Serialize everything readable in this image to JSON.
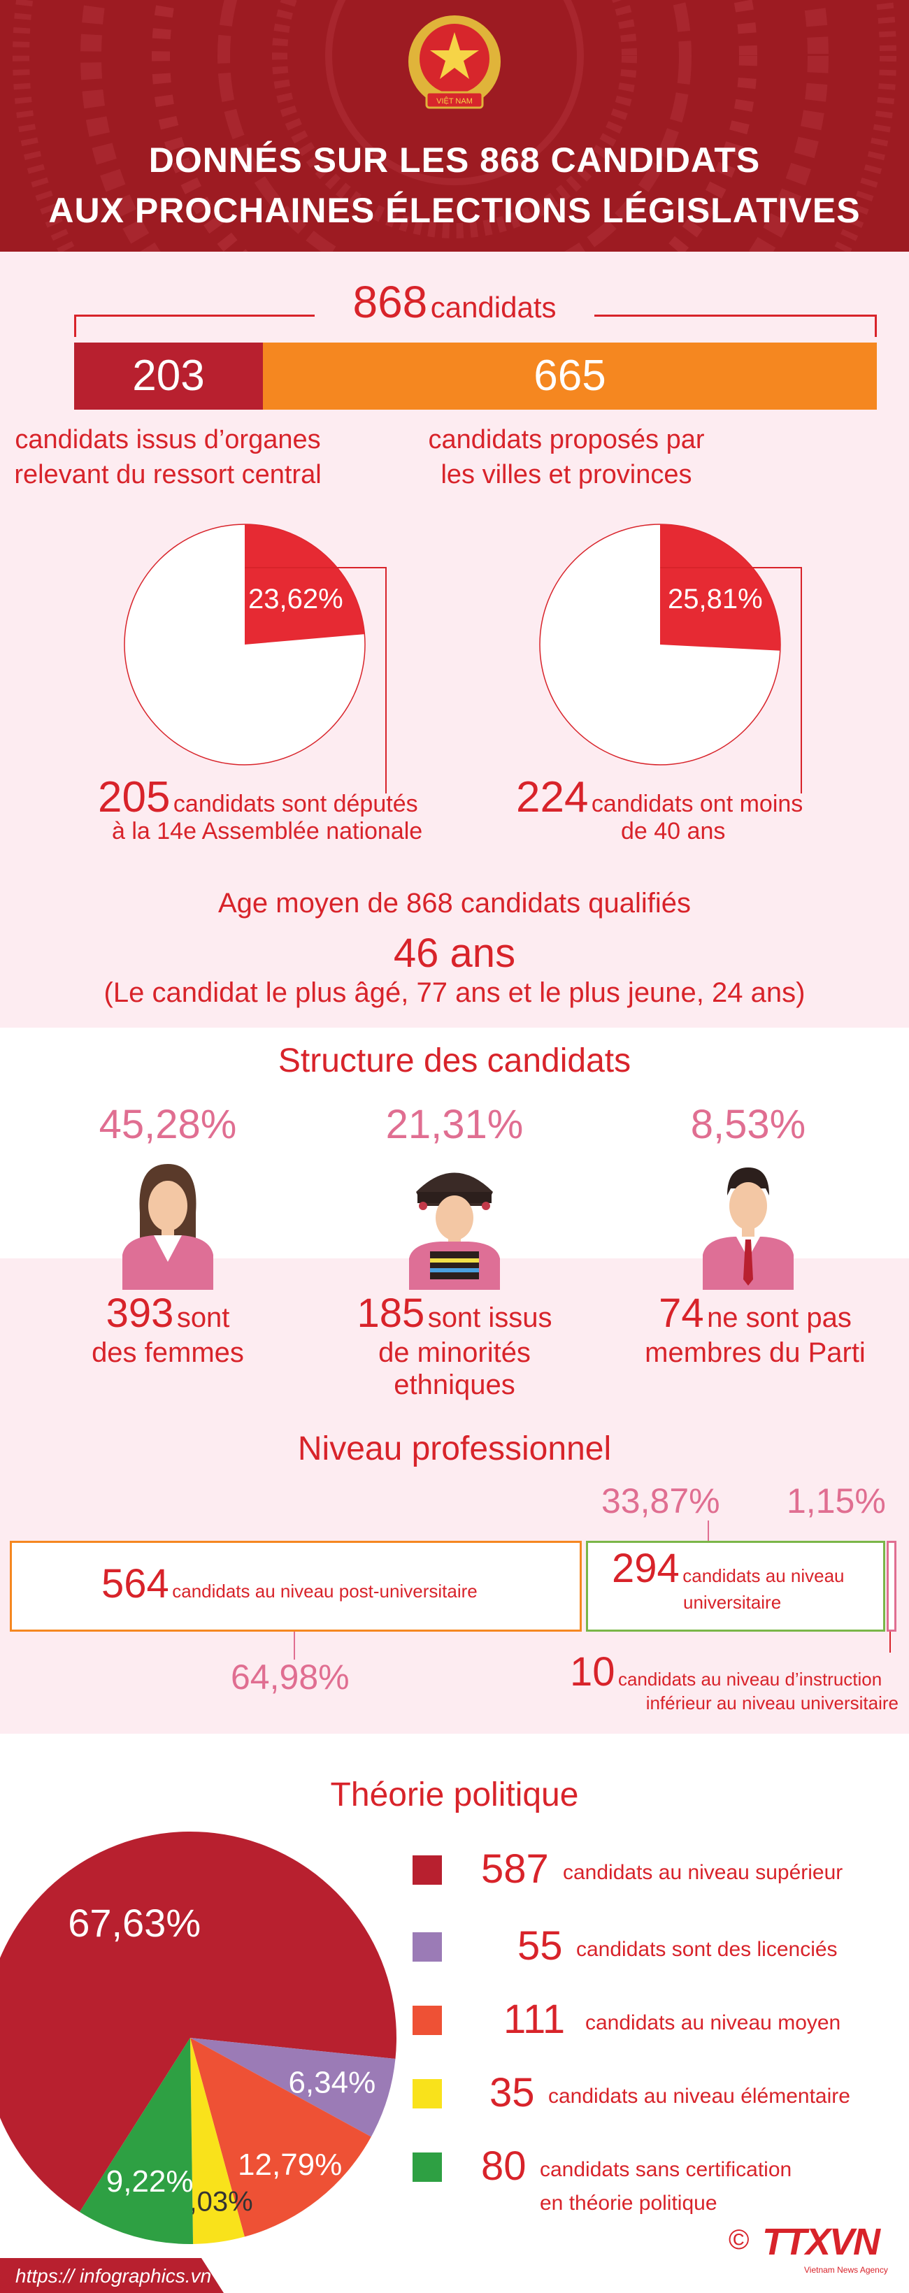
{
  "header": {
    "title_line1": "DONNÉS SUR LES 868 CANDIDATS",
    "title_line2": "AUX PROCHAINES ÉLECTIONS LÉGISLATIVES",
    "emblem_text": "VIỆT NAM"
  },
  "total": {
    "number": "868",
    "label": "candidats"
  },
  "split": {
    "central": {
      "number": "203",
      "label_line1": "candidats issus d’organes",
      "label_line2": "relevant du ressort central"
    },
    "provincial": {
      "number": "665",
      "label_line1": "candidats proposés par",
      "label_line2": "les villes et provinces"
    }
  },
  "pies": {
    "deputies": {
      "pct": 23.62,
      "label": "23,62%",
      "number": "205",
      "text1": "candidats sont députés",
      "text2": "à la 14e Assemblée nationale"
    },
    "young": {
      "pct": 25.81,
      "label": "25,81%",
      "number": "224",
      "text1": "candidats ont moins",
      "text2": "de 40 ans"
    }
  },
  "age": {
    "title": "Age moyen de 868 candidats qualifiés",
    "value": "46 ans",
    "note": "(Le candidat le plus âgé, 77 ans et le plus jeune, 24 ans)"
  },
  "structure": {
    "title": "Structure des candidats",
    "items": [
      {
        "pct": "45,28%",
        "number": "393",
        "text1": "sont",
        "text2": "des femmes",
        "text3": "",
        "icon": "woman-icon"
      },
      {
        "pct": "21,31%",
        "number": "185",
        "text1": "sont issus",
        "text2": "de minorités",
        "text3": "ethniques",
        "icon": "ethnic-minority-icon"
      },
      {
        "pct": "8,53%",
        "number": "74",
        "text1": "ne sont pas",
        "text2": "membres du Parti",
        "text3": "",
        "icon": "man-icon"
      }
    ]
  },
  "professional": {
    "title": "Niveau professionnel",
    "post_university": {
      "number": "564",
      "text": "candidats au niveau post-universitaire",
      "pct": "64,98%"
    },
    "university": {
      "number": "294",
      "text1": "candidats au niveau",
      "text2": "universitaire",
      "pct": "33,87%"
    },
    "below": {
      "number": "10",
      "text1": "candidats au niveau d’instruction",
      "text2": "inférieur au niveau universitaire",
      "pct": "1,15%"
    }
  },
  "chart_data": {
    "type": "pie",
    "title": "Théorie politique",
    "slices": [
      {
        "label": "candidats au niveau supérieur",
        "count": 587,
        "value": 67.63,
        "pct_label": "67,63%",
        "color": "#b8202f"
      },
      {
        "label": "candidats sont des licenciés",
        "count": 55,
        "value": 6.34,
        "pct_label": "6,34%",
        "color": "#9b7bb6"
      },
      {
        "label": "candidats au niveau moyen",
        "count": 111,
        "value": 12.79,
        "pct_label": "12,79%",
        "color": "#ee5135"
      },
      {
        "label": "candidats au niveau élémentaire",
        "count": 35,
        "value": 4.03,
        "pct_label": "4,03%",
        "color": "#f9e21b"
      },
      {
        "label": "candidats sans certification en théorie politique",
        "count": 80,
        "value": 9.22,
        "pct_label": "9,22%",
        "color": "#2ea043"
      }
    ]
  },
  "legend": [
    {
      "number": "587",
      "text1": "candidats au niveau supérieur",
      "text2": ""
    },
    {
      "number": "55",
      "text1": "candidats sont des licenciés",
      "text2": ""
    },
    {
      "number": "111",
      "text1": "candidats au niveau moyen",
      "text2": ""
    },
    {
      "number": "35",
      "text1": "candidats au niveau élémentaire",
      "text2": ""
    },
    {
      "number": "80",
      "text1": "candidats sans certification",
      "text2": "en théorie politique"
    }
  ],
  "footer": {
    "url": "https:// infographics.vn",
    "copyright": "©",
    "brand": "TTXVN",
    "brand_sub": "Vietnam News Agency"
  }
}
